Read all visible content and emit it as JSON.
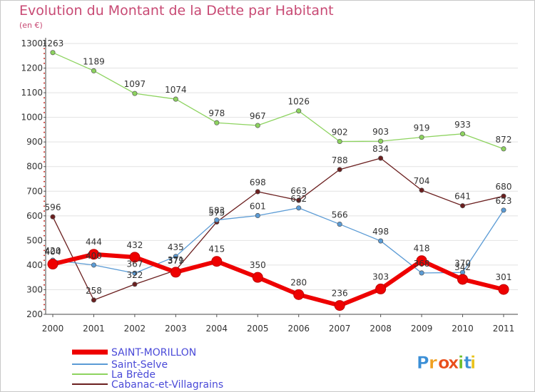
{
  "header": {
    "title": "Evolution du Montant de la Dette par Habitant",
    "subtitle": "(en €)"
  },
  "logo": {
    "text": "Proxiti"
  },
  "chart_data": {
    "type": "line",
    "title": "Evolution du Montant de la Dette par Habitant",
    "subtitle": "(en €)",
    "x": [
      "2000",
      "2001",
      "2002",
      "2003",
      "2004",
      "2005",
      "2006",
      "2007",
      "2008",
      "2009",
      "2010",
      "2011"
    ],
    "y_ticks": [
      "200",
      "300",
      "400",
      "500",
      "600",
      "700",
      "800",
      "900",
      "1000",
      "1100",
      "1200",
      "1300"
    ],
    "ylim": [
      200,
      1300
    ],
    "grid": "horizontal",
    "legend_position": "bottom-left",
    "series": [
      {
        "name": "SAINT-MORILLON",
        "color": "#ee0000",
        "values": [
          404,
          444,
          432,
          371,
          415,
          350,
          280,
          236,
          303,
          418,
          342,
          301
        ]
      },
      {
        "name": "Saint-Selve",
        "color": "#5b9bd5",
        "values": [
          420,
          400,
          367,
          435,
          583,
          601,
          632,
          566,
          498,
          368,
          370,
          623
        ]
      },
      {
        "name": "La Brède",
        "color": "#8dd35f",
        "values": [
          1263,
          1189,
          1097,
          1074,
          978,
          967,
          1026,
          902,
          903,
          919,
          933,
          872
        ]
      },
      {
        "name": "Cabanac-et-Villagrains",
        "color": "#6b1f1f",
        "values": [
          596,
          258,
          322,
          379,
          575,
          698,
          663,
          788,
          834,
          704,
          641,
          680
        ]
      }
    ],
    "labels": {
      "SAINT-MORILLON": [
        "404",
        "444",
        "432",
        "371",
        "415",
        "350",
        "280",
        "236",
        "303",
        "418",
        "342",
        "301"
      ],
      "Saint-Selve": [
        "420",
        "400",
        "367",
        "435",
        "583",
        "601",
        "632",
        "566",
        "498",
        "368",
        "370",
        "623"
      ],
      "La Brède": [
        "1263",
        "1189",
        "1097",
        "1074",
        "978",
        "967",
        "1026",
        "902",
        "903",
        "919",
        "933",
        "872"
      ],
      "Cabanac-et-Villagrains": [
        "596",
        "258",
        "322",
        "379",
        "575",
        "698",
        "663",
        "788",
        "834",
        "704",
        "641",
        "680"
      ]
    }
  }
}
